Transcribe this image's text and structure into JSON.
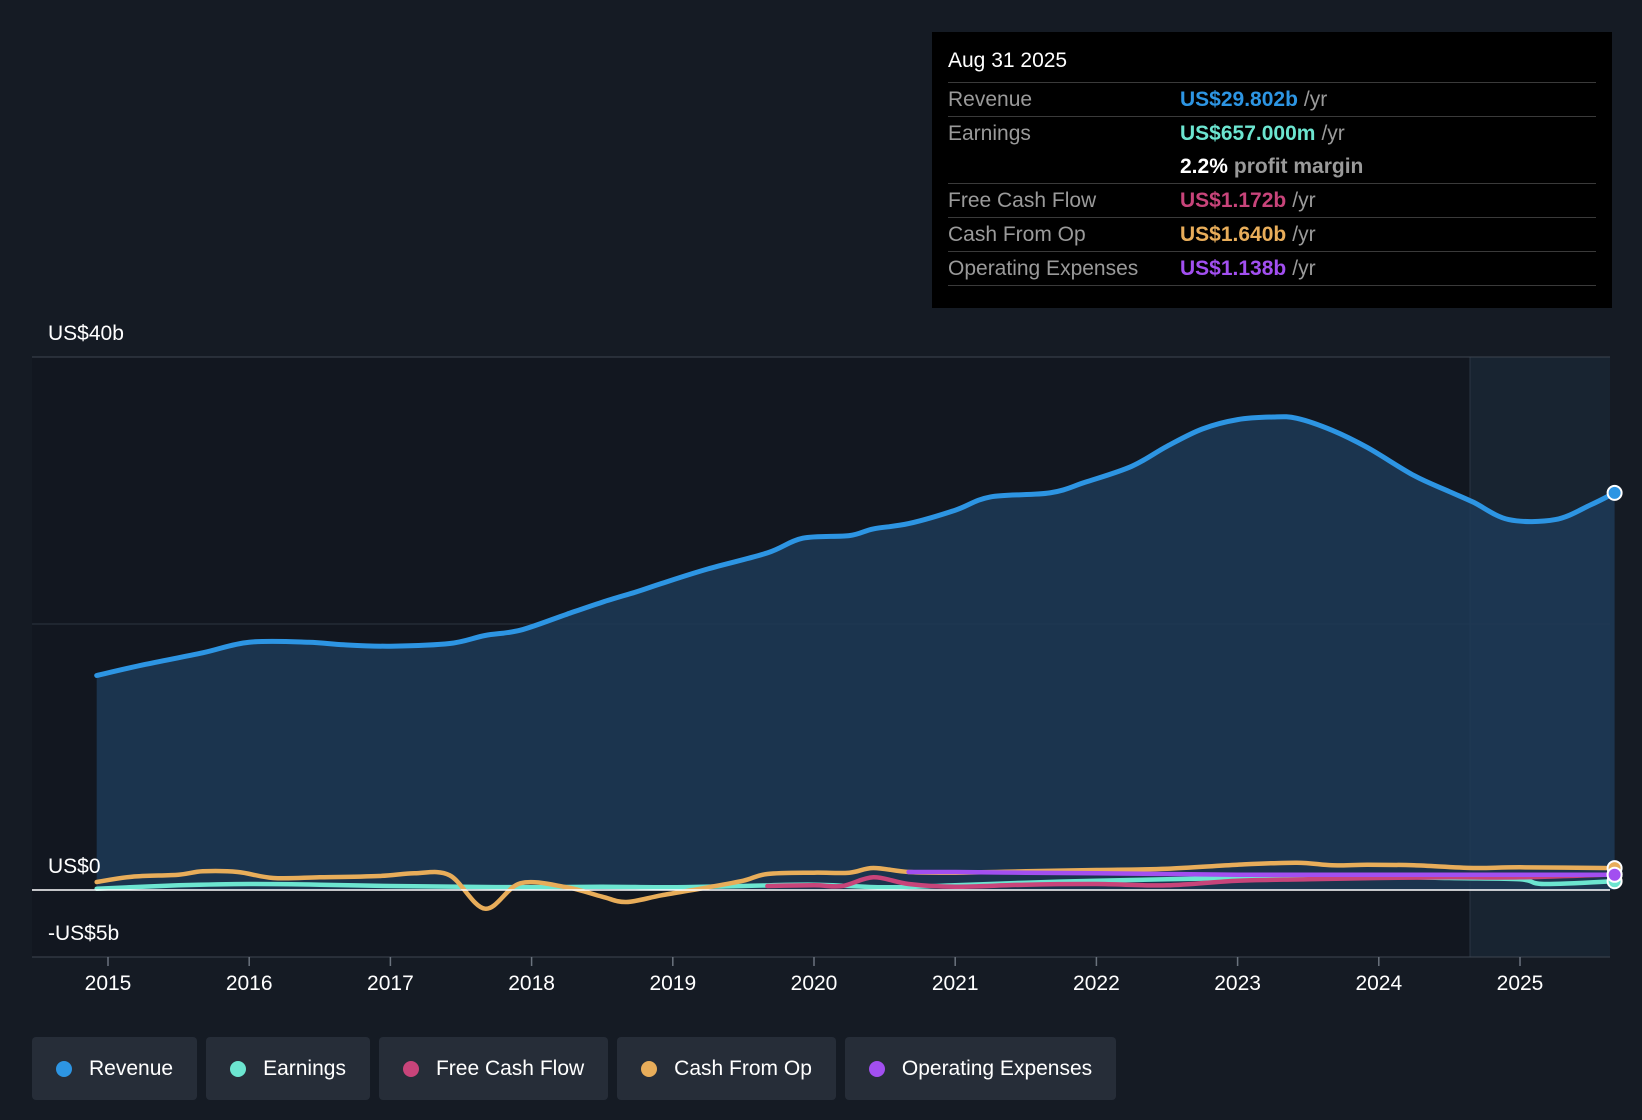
{
  "colors": {
    "revenue": "#2d95e3",
    "earnings": "#6ce5d0",
    "free_cash_flow": "#c8447a",
    "cash_from_op": "#e8ad5a",
    "operating_expenses": "#a24ff0"
  },
  "tooltip": {
    "date": "Aug 31 2025",
    "rows": [
      {
        "label": "Revenue",
        "value": "US$29.802b",
        "unit": "/yr"
      },
      {
        "label": "Earnings",
        "value": "US$657.000m",
        "unit": "/yr"
      },
      {
        "label": "",
        "value": "2.2%",
        "unit": "profit margin"
      },
      {
        "label": "Free Cash Flow",
        "value": "US$1.172b",
        "unit": "/yr"
      },
      {
        "label": "Cash From Op",
        "value": "US$1.640b",
        "unit": "/yr"
      },
      {
        "label": "Operating Expenses",
        "value": "US$1.138b",
        "unit": "/yr"
      }
    ]
  },
  "legend": {
    "items": [
      "Revenue",
      "Earnings",
      "Free Cash Flow",
      "Cash From Op",
      "Operating Expenses"
    ]
  },
  "chart_data": {
    "type": "area",
    "title": "",
    "ylabel": "",
    "xlabel": "",
    "ylim": [
      -5,
      40
    ],
    "y_labels": [
      "US$40b",
      "US$0",
      "-US$5b"
    ],
    "x_ticks": [
      "2015",
      "2016",
      "2017",
      "2018",
      "2019",
      "2020",
      "2021",
      "2022",
      "2023",
      "2024",
      "2025"
    ],
    "series": [
      {
        "name": "Revenue",
        "x": [
          2014.92,
          2015.25,
          2015.67,
          2016.0,
          2016.42,
          2016.67,
          2017.0,
          2017.42,
          2017.67,
          2017.92,
          2018.25,
          2018.5,
          2018.75,
          2018.92,
          2019.25,
          2019.67,
          2019.92,
          2020.25,
          2020.42,
          2020.67,
          2021.0,
          2021.25,
          2021.67,
          2021.92,
          2022.25,
          2022.5,
          2022.75,
          2023.0,
          2023.25,
          2023.42,
          2023.67,
          2023.92,
          2024.25,
          2024.5,
          2024.67,
          2024.92,
          2025.25,
          2025.5,
          2025.67
        ],
        "values": [
          16.1,
          16.9,
          17.8,
          18.6,
          18.6,
          18.4,
          18.3,
          18.5,
          19.1,
          19.5,
          20.7,
          21.6,
          22.4,
          23.0,
          24.1,
          25.3,
          26.4,
          26.6,
          27.1,
          27.5,
          28.5,
          29.5,
          29.8,
          30.6,
          31.8,
          33.3,
          34.6,
          35.3,
          35.5,
          35.4,
          34.5,
          33.2,
          31.1,
          29.9,
          29.1,
          27.8,
          27.8,
          28.9,
          29.802
        ]
      },
      {
        "name": "Earnings",
        "x": [
          2014.92,
          2015.5,
          2016.0,
          2016.5,
          2017.0,
          2017.5,
          2018.0,
          2018.5,
          2019.0,
          2019.5,
          2020.0,
          2020.5,
          2021.0,
          2021.5,
          2022.0,
          2022.5,
          2023.0,
          2023.5,
          2024.0,
          2024.5,
          2025.0,
          2025.17,
          2025.67
        ],
        "values": [
          0.1,
          0.35,
          0.45,
          0.4,
          0.3,
          0.25,
          0.2,
          0.25,
          0.2,
          0.3,
          0.4,
          0.2,
          0.35,
          0.55,
          0.7,
          0.8,
          0.9,
          0.95,
          1.0,
          0.9,
          0.8,
          0.45,
          0.657
        ]
      },
      {
        "name": "Free Cash Flow",
        "x": [
          2019.67,
          2020.0,
          2020.2,
          2020.42,
          2020.67,
          2021.0,
          2021.5,
          2022.0,
          2022.5,
          2023.0,
          2023.5,
          2024.0,
          2024.5,
          2025.0,
          2025.67
        ],
        "values": [
          0.3,
          0.35,
          0.3,
          0.95,
          0.45,
          0.25,
          0.4,
          0.45,
          0.35,
          0.7,
          0.8,
          0.9,
          0.95,
          0.95,
          1.172
        ]
      },
      {
        "name": "Cash From Op",
        "x": [
          2014.92,
          2015.17,
          2015.5,
          2015.67,
          2015.92,
          2016.17,
          2016.5,
          2016.92,
          2017.17,
          2017.42,
          2017.67,
          2017.92,
          2018.25,
          2018.5,
          2018.67,
          2018.92,
          2019.25,
          2019.5,
          2019.67,
          2020.0,
          2020.25,
          2020.42,
          2020.67,
          2021.0,
          2021.5,
          2022.0,
          2022.5,
          2023.0,
          2023.42,
          2023.67,
          2023.92,
          2024.25,
          2024.67,
          2025.0,
          2025.67
        ],
        "values": [
          0.6,
          1.0,
          1.15,
          1.4,
          1.35,
          0.9,
          0.95,
          1.05,
          1.25,
          1.1,
          -1.4,
          0.5,
          0.2,
          -0.5,
          -0.9,
          -0.4,
          0.2,
          0.7,
          1.2,
          1.3,
          1.3,
          1.65,
          1.35,
          1.3,
          1.4,
          1.5,
          1.6,
          1.9,
          2.05,
          1.85,
          1.9,
          1.85,
          1.65,
          1.7,
          1.64
        ]
      },
      {
        "name": "Operating Expenses",
        "x": [
          2020.67,
          2021.0,
          2021.5,
          2022.0,
          2022.5,
          2023.0,
          2023.5,
          2024.0,
          2024.5,
          2025.0,
          2025.67
        ],
        "values": [
          1.35,
          1.35,
          1.3,
          1.25,
          1.2,
          1.15,
          1.15,
          1.15,
          1.15,
          1.14,
          1.138
        ]
      }
    ]
  }
}
